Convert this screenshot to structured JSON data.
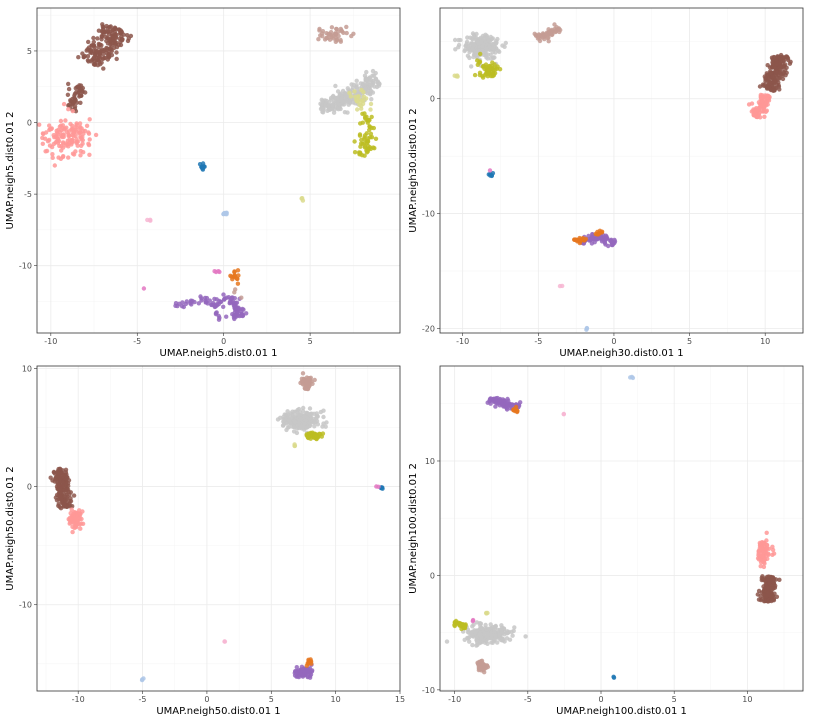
{
  "colors": {
    "brown": "#8c564b",
    "pink": "#ff9896",
    "rosybrown": "#c49c94",
    "lightgrey": "#c7c7c7",
    "olive": "#bcbd22",
    "khaki": "#dbdb8d",
    "blue": "#1f77b4",
    "lightblue": "#aec7e8",
    "purple": "#9467bd",
    "orange": "#e6771e",
    "magenta": "#e377c2",
    "lightpink": "#f7b6d2"
  },
  "chart_data": [
    {
      "type": "scatter",
      "xlabel": "UMAP.neigh5.dist0.01 1",
      "ylabel": "UMAP.neigh5.dist0.01 2",
      "xlim": [
        -10.8,
        10.2
      ],
      "ylim": [
        -14.7,
        8.0
      ],
      "xticks": [
        -10,
        -5,
        0,
        5
      ],
      "yticks": [
        5,
        0,
        -5,
        -10
      ],
      "xtick_labels": [
        "-10",
        "-5",
        "0",
        "5"
      ],
      "ytick_labels": [
        "5",
        "0",
        "-5",
        "-10"
      ],
      "grid": true,
      "clusters": [
        {
          "color": "brown",
          "shape": "line",
          "points": [
            [
              -7.6,
              4.1
            ],
            [
              -6.2,
              6.6
            ]
          ],
          "width": 1.1,
          "n": 170
        },
        {
          "color": "brown",
          "shape": "line",
          "points": [
            [
              -8.9,
              0.9
            ],
            [
              -8.3,
              2.6
            ]
          ],
          "width": 0.6,
          "n": 45
        },
        {
          "color": "pink",
          "shape": "blob",
          "center": [
            -9.1,
            -1.0
          ],
          "spread": [
            1.3,
            1.2
          ],
          "n": 140
        },
        {
          "color": "rosybrown",
          "shape": "blob",
          "center": [
            6.3,
            6.1
          ],
          "spread": [
            0.9,
            0.5
          ],
          "n": 45
        },
        {
          "color": "lightgrey",
          "shape": "poly",
          "points": [
            [
              5.6,
              1.0
            ],
            [
              7.0,
              1.5
            ],
            [
              8.2,
              2.6
            ],
            [
              9.0,
              2.8
            ]
          ],
          "width": 0.9,
          "n": 220
        },
        {
          "color": "olive",
          "shape": "line",
          "points": [
            [
              8.4,
              0.6
            ],
            [
              8.0,
              -2.3
            ]
          ],
          "width": 0.6,
          "n": 60
        },
        {
          "color": "khaki",
          "shape": "blob",
          "center": [
            7.9,
            1.5
          ],
          "spread": [
            0.6,
            0.6
          ],
          "n": 25
        },
        {
          "color": "blue",
          "shape": "blob",
          "center": [
            -1.3,
            -3.1
          ],
          "spread": [
            0.2,
            0.2
          ],
          "n": 10
        },
        {
          "color": "lightblue",
          "shape": "blob",
          "center": [
            0.2,
            -6.4
          ],
          "spread": [
            0.3,
            0.2
          ],
          "n": 8
        },
        {
          "color": "khaki",
          "shape": "blob",
          "center": [
            4.6,
            -5.3
          ],
          "spread": [
            0.15,
            0.15
          ],
          "n": 3
        },
        {
          "color": "lightpink",
          "shape": "blob",
          "center": [
            -4.3,
            -6.8
          ],
          "spread": [
            0.2,
            0.1
          ],
          "n": 3
        },
        {
          "color": "magenta",
          "shape": "blob",
          "center": [
            -4.6,
            -11.6
          ],
          "spread": [
            0.05,
            0.05
          ],
          "n": 1
        },
        {
          "color": "purple",
          "shape": "poly",
          "points": [
            [
              -2.8,
              -12.8
            ],
            [
              -1.2,
              -12.4
            ],
            [
              -0.2,
              -12.7
            ],
            [
              0.5,
              -12.2
            ],
            [
              1.1,
              -13.6
            ]
          ],
          "width": 0.4,
          "n": 90
        },
        {
          "color": "purple",
          "shape": "line",
          "points": [
            [
              -0.6,
              -13.4
            ],
            [
              0.8,
              -13.5
            ]
          ],
          "width": 0.3,
          "n": 18
        },
        {
          "color": "orange",
          "shape": "blob",
          "center": [
            0.7,
            -10.7
          ],
          "spread": [
            0.5,
            0.6
          ],
          "n": 14
        },
        {
          "color": "magenta",
          "shape": "blob",
          "center": [
            -0.4,
            -10.4
          ],
          "spread": [
            0.3,
            0.1
          ],
          "n": 4
        },
        {
          "color": "rosybrown",
          "shape": "blob",
          "center": [
            0.7,
            -12.0
          ],
          "spread": [
            0.3,
            0.3
          ],
          "n": 3
        }
      ]
    },
    {
      "type": "scatter",
      "xlabel": "UMAP.neigh30.dist0.01 1",
      "ylabel": "UMAP.neigh30.dist0.01 2",
      "xlim": [
        -11.5,
        12.5
      ],
      "ylim": [
        -20.4,
        7.9
      ],
      "xticks": [
        -10,
        -5,
        0,
        5,
        10
      ],
      "yticks": [
        0,
        -10,
        -20
      ],
      "xtick_labels": [
        "-10",
        "-5",
        "0",
        "5",
        "10"
      ],
      "ytick_labels": [
        "0",
        "-10",
        "-20"
      ],
      "grid": true,
      "clusters": [
        {
          "color": "lightgrey",
          "shape": "blob",
          "center": [
            -8.7,
            4.5
          ],
          "spread": [
            1.3,
            1.0
          ],
          "n": 200
        },
        {
          "color": "olive",
          "shape": "blob",
          "center": [
            -8.3,
            2.5
          ],
          "spread": [
            0.7,
            0.8
          ],
          "n": 60
        },
        {
          "color": "khaki",
          "shape": "blob",
          "center": [
            -10.5,
            2.0
          ],
          "spread": [
            0.2,
            0.2
          ],
          "n": 4
        },
        {
          "color": "rosybrown",
          "shape": "line",
          "points": [
            [
              -5.1,
              5.3
            ],
            [
              -3.6,
              6.1
            ]
          ],
          "width": 0.5,
          "n": 50
        },
        {
          "color": "brown",
          "shape": "line",
          "points": [
            [
              10.2,
              0.8
            ],
            [
              11.2,
              3.8
            ]
          ],
          "width": 0.8,
          "n": 180
        },
        {
          "color": "pink",
          "shape": "line",
          "points": [
            [
              9.3,
              -1.6
            ],
            [
              10.2,
              0.3
            ]
          ],
          "width": 0.6,
          "n": 90
        },
        {
          "color": "blue",
          "shape": "blob",
          "center": [
            -8.1,
            -6.6
          ],
          "spread": [
            0.15,
            0.2
          ],
          "n": 6
        },
        {
          "color": "magenta",
          "shape": "blob",
          "center": [
            -8.2,
            -6.2
          ],
          "spread": [
            0.05,
            0.05
          ],
          "n": 1
        },
        {
          "color": "purple",
          "shape": "poly",
          "points": [
            [
              -2.2,
              -12.5
            ],
            [
              -1.0,
              -11.9
            ],
            [
              0.0,
              -12.6
            ]
          ],
          "width": 0.4,
          "n": 80
        },
        {
          "color": "orange",
          "shape": "blob",
          "center": [
            -2.3,
            -12.3
          ],
          "spread": [
            0.4,
            0.2
          ],
          "n": 20
        },
        {
          "color": "orange",
          "shape": "blob",
          "center": [
            -1.0,
            -11.6
          ],
          "spread": [
            0.3,
            0.2
          ],
          "n": 10
        },
        {
          "color": "lightpink",
          "shape": "blob",
          "center": [
            -3.5,
            -16.3
          ],
          "spread": [
            0.1,
            0.05
          ],
          "n": 2
        },
        {
          "color": "lightblue",
          "shape": "blob",
          "center": [
            -1.8,
            -20.0
          ],
          "spread": [
            0.1,
            0.1
          ],
          "n": 3
        }
      ]
    },
    {
      "type": "scatter",
      "xlabel": "UMAP.neigh50.dist0.01 1",
      "ylabel": "UMAP.neigh50.dist0.01 2",
      "xlim": [
        -13.2,
        15.0
      ],
      "ylim": [
        -17.3,
        10.2
      ],
      "xticks": [
        -10,
        -5,
        0,
        5,
        10,
        15
      ],
      "yticks": [
        10,
        0,
        -10
      ],
      "xtick_labels": [
        "-10",
        "-5",
        "0",
        "5",
        "10",
        "15"
      ],
      "ytick_labels": [
        "10",
        "0",
        "-10"
      ],
      "grid": true,
      "clusters": [
        {
          "color": "brown",
          "shape": "line",
          "points": [
            [
              -11.5,
              1.5
            ],
            [
              -11.0,
              -1.8
            ]
          ],
          "width": 0.7,
          "n": 180
        },
        {
          "color": "pink",
          "shape": "blob",
          "center": [
            -10.3,
            -2.8
          ],
          "spread": [
            0.5,
            0.7
          ],
          "n": 80
        },
        {
          "color": "rosybrown",
          "shape": "blob",
          "center": [
            7.8,
            8.8
          ],
          "spread": [
            0.5,
            0.5
          ],
          "n": 50
        },
        {
          "color": "lightgrey",
          "shape": "blob",
          "center": [
            7.3,
            5.6
          ],
          "spread": [
            1.4,
            0.8
          ],
          "n": 200
        },
        {
          "color": "olive",
          "shape": "blob",
          "center": [
            8.3,
            4.3
          ],
          "spread": [
            0.6,
            0.3
          ],
          "n": 50
        },
        {
          "color": "khaki",
          "shape": "blob",
          "center": [
            6.8,
            3.5
          ],
          "spread": [
            0.15,
            0.15
          ],
          "n": 3
        },
        {
          "color": "blue",
          "shape": "blob",
          "center": [
            13.6,
            -0.1
          ],
          "spread": [
            0.15,
            0.1
          ],
          "n": 5
        },
        {
          "color": "magenta",
          "shape": "blob",
          "center": [
            13.2,
            0.0
          ],
          "spread": [
            0.1,
            0.05
          ],
          "n": 2
        },
        {
          "color": "lightblue",
          "shape": "blob",
          "center": [
            -5.0,
            -16.3
          ],
          "spread": [
            0.1,
            0.1
          ],
          "n": 3
        },
        {
          "color": "lightpink",
          "shape": "blob",
          "center": [
            1.4,
            -13.1
          ],
          "spread": [
            0.05,
            0.05
          ],
          "n": 2
        },
        {
          "color": "purple",
          "shape": "blob",
          "center": [
            7.5,
            -15.7
          ],
          "spread": [
            0.9,
            0.5
          ],
          "n": 80
        },
        {
          "color": "orange",
          "shape": "blob",
          "center": [
            7.9,
            -14.9
          ],
          "spread": [
            0.3,
            0.3
          ],
          "n": 10
        }
      ]
    },
    {
      "type": "scatter",
      "xlabel": "UMAP.neigh100.dist0.01 1",
      "ylabel": "UMAP.neigh100.dist0.01 2",
      "xlim": [
        -11.0,
        13.8
      ],
      "ylim": [
        -10.1,
        18.3
      ],
      "xticks": [
        -10,
        -5,
        0,
        5,
        10
      ],
      "yticks": [
        10,
        0,
        -10
      ],
      "xtick_labels": [
        "-10",
        "-5",
        "0",
        "5",
        "10"
      ],
      "ytick_labels": [
        "10",
        "0",
        "-10"
      ],
      "grid": true,
      "clusters": [
        {
          "color": "purple",
          "shape": "line",
          "points": [
            [
              -7.7,
              15.3
            ],
            [
              -5.6,
              14.8
            ]
          ],
          "width": 0.4,
          "n": 80
        },
        {
          "color": "orange",
          "shape": "blob",
          "center": [
            -5.9,
            14.5
          ],
          "spread": [
            0.3,
            0.3
          ],
          "n": 10
        },
        {
          "color": "lightpink",
          "shape": "blob",
          "center": [
            -2.6,
            14.1
          ],
          "spread": [
            0.1,
            0.05
          ],
          "n": 2
        },
        {
          "color": "lightblue",
          "shape": "blob",
          "center": [
            2.1,
            17.3
          ],
          "spread": [
            0.15,
            0.1
          ],
          "n": 3
        },
        {
          "color": "pink",
          "shape": "blob",
          "center": [
            11.1,
            2.0
          ],
          "spread": [
            0.5,
            0.9
          ],
          "n": 80
        },
        {
          "color": "brown",
          "shape": "line",
          "points": [
            [
              11.5,
              -0.1
            ],
            [
              11.4,
              -2.3
            ]
          ],
          "width": 0.6,
          "n": 150
        },
        {
          "color": "lightgrey",
          "shape": "blob",
          "center": [
            -7.8,
            -5.1
          ],
          "spread": [
            1.6,
            0.8
          ],
          "n": 200
        },
        {
          "color": "olive",
          "shape": "line",
          "points": [
            [
              -10.0,
              -4.1
            ],
            [
              -9.2,
              -4.6
            ]
          ],
          "width": 0.3,
          "n": 30
        },
        {
          "color": "khaki",
          "shape": "blob",
          "center": [
            -7.8,
            -3.2
          ],
          "spread": [
            0.15,
            0.15
          ],
          "n": 3
        },
        {
          "color": "rosybrown",
          "shape": "blob",
          "center": [
            -8.2,
            -7.9
          ],
          "spread": [
            0.4,
            0.5
          ],
          "n": 40
        },
        {
          "color": "magenta",
          "shape": "blob",
          "center": [
            -8.7,
            -3.9
          ],
          "spread": [
            0.1,
            0.1
          ],
          "n": 2
        },
        {
          "color": "blue",
          "shape": "blob",
          "center": [
            0.9,
            -8.9
          ],
          "spread": [
            0.05,
            0.05
          ],
          "n": 2
        }
      ]
    }
  ]
}
